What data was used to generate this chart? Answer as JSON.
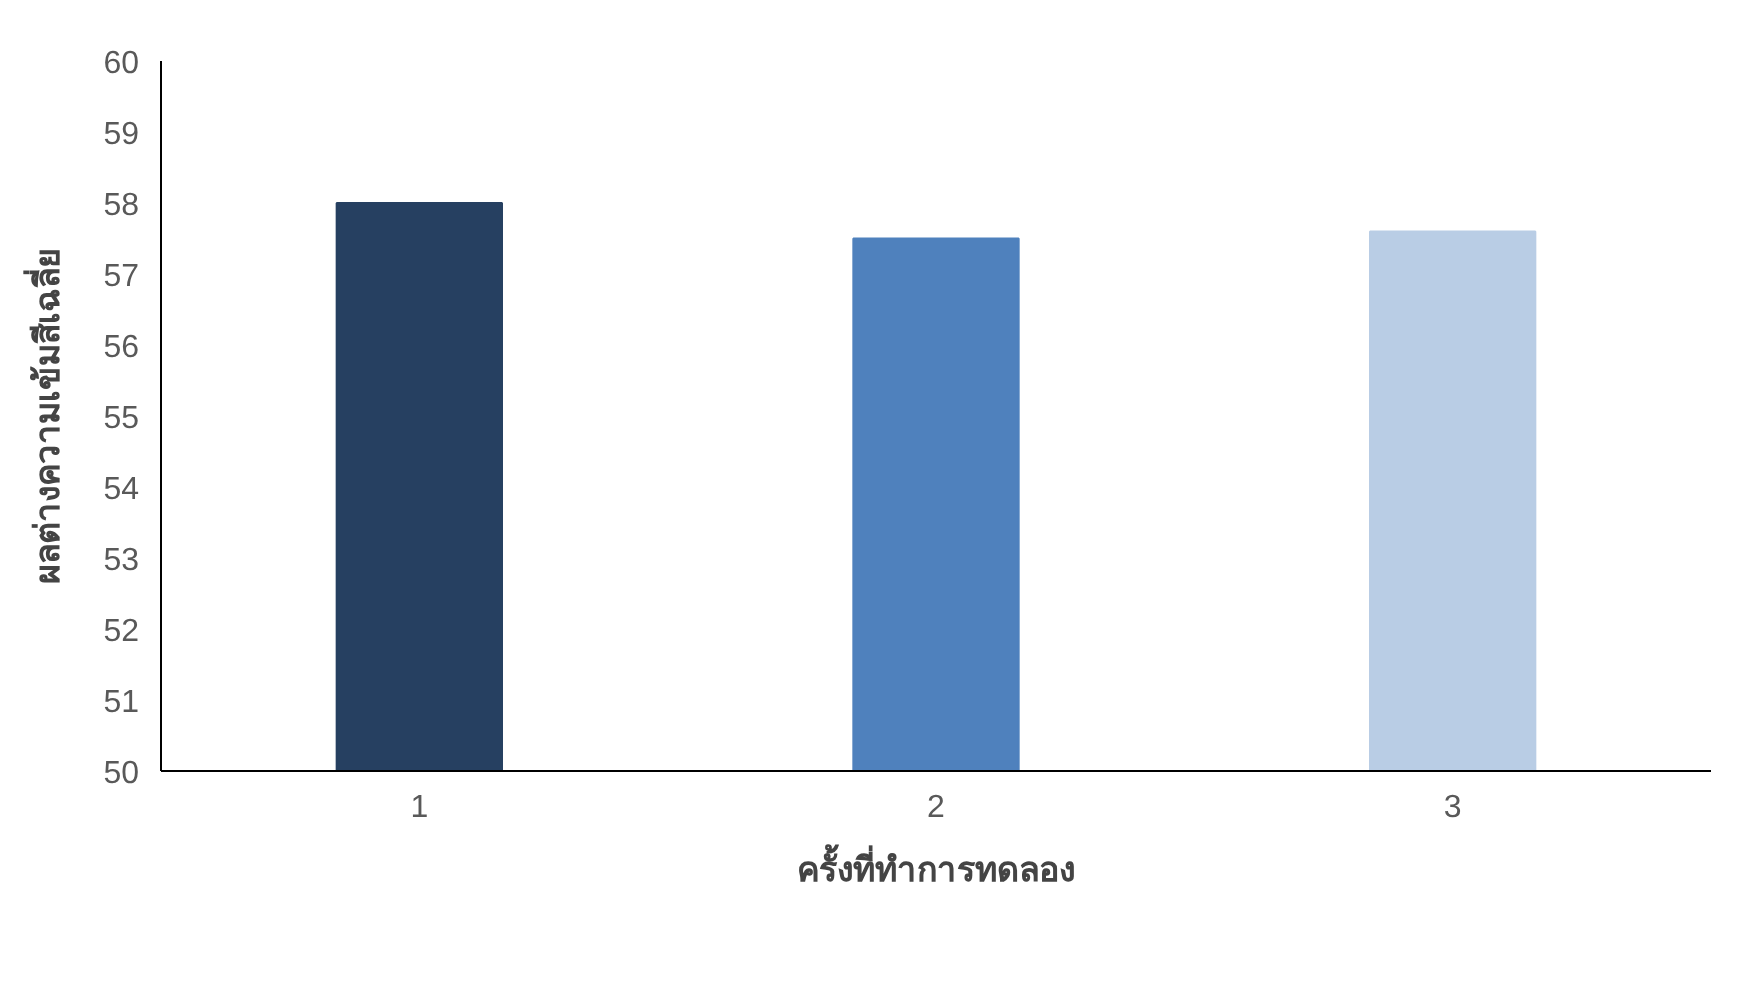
{
  "chart_data": {
    "type": "bar",
    "xlabel": "ครั้งที่ทำการทดลอง",
    "ylabel": "ผลต่างความเข้มสีเฉลี่ย",
    "categories": [
      "1",
      "2",
      "3"
    ],
    "values": [
      58.0,
      57.5,
      57.6
    ],
    "colors": [
      "#264061",
      "#4f81bd",
      "#b9cde5"
    ],
    "ylim": [
      50,
      60
    ],
    "yticks": [
      50,
      51,
      52,
      53,
      54,
      55,
      56,
      57,
      58,
      59,
      60
    ],
    "grid": false
  }
}
